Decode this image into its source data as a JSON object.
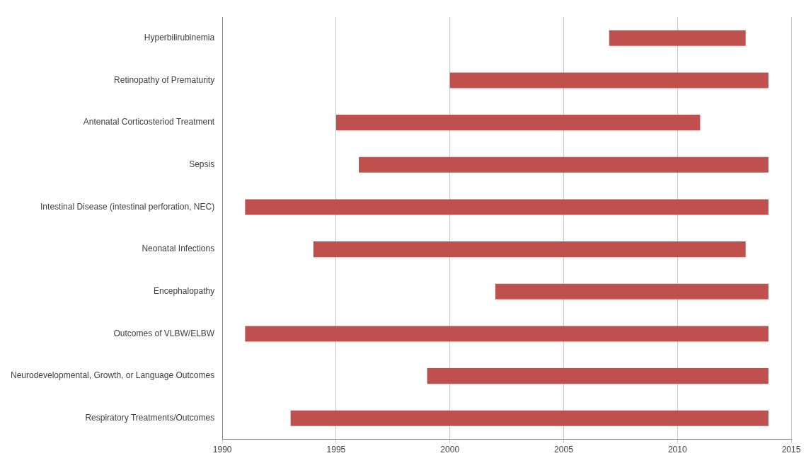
{
  "chart_data": {
    "type": "bar",
    "orientation": "horizontal",
    "categories": [
      "Hyperbilirubinemia",
      "Retinopathy of Prematurity",
      "Antenatal Corticosteriod Treatment",
      "Sepsis",
      "Intestinal Disease (intestinal perforation, NEC)",
      "Neonatal Infections",
      "Encephalopathy",
      "Outcomes of VLBW/ELBW",
      "Neurodevelopmental, Growth, or Language Outcomes",
      "Respiratory Treatments/Outcomes"
    ],
    "base": [
      2007,
      2000,
      1995,
      1996,
      1991,
      1994,
      2002,
      1991,
      1999,
      1993
    ],
    "values": [
      6,
      14,
      16,
      18,
      23,
      19,
      12,
      23,
      15,
      21
    ],
    "color": "#c0504d",
    "xlim": [
      1990,
      2015
    ],
    "xticks": [
      1990,
      1995,
      2000,
      2005,
      2010,
      2015
    ],
    "grid": "x",
    "legend": false
  }
}
